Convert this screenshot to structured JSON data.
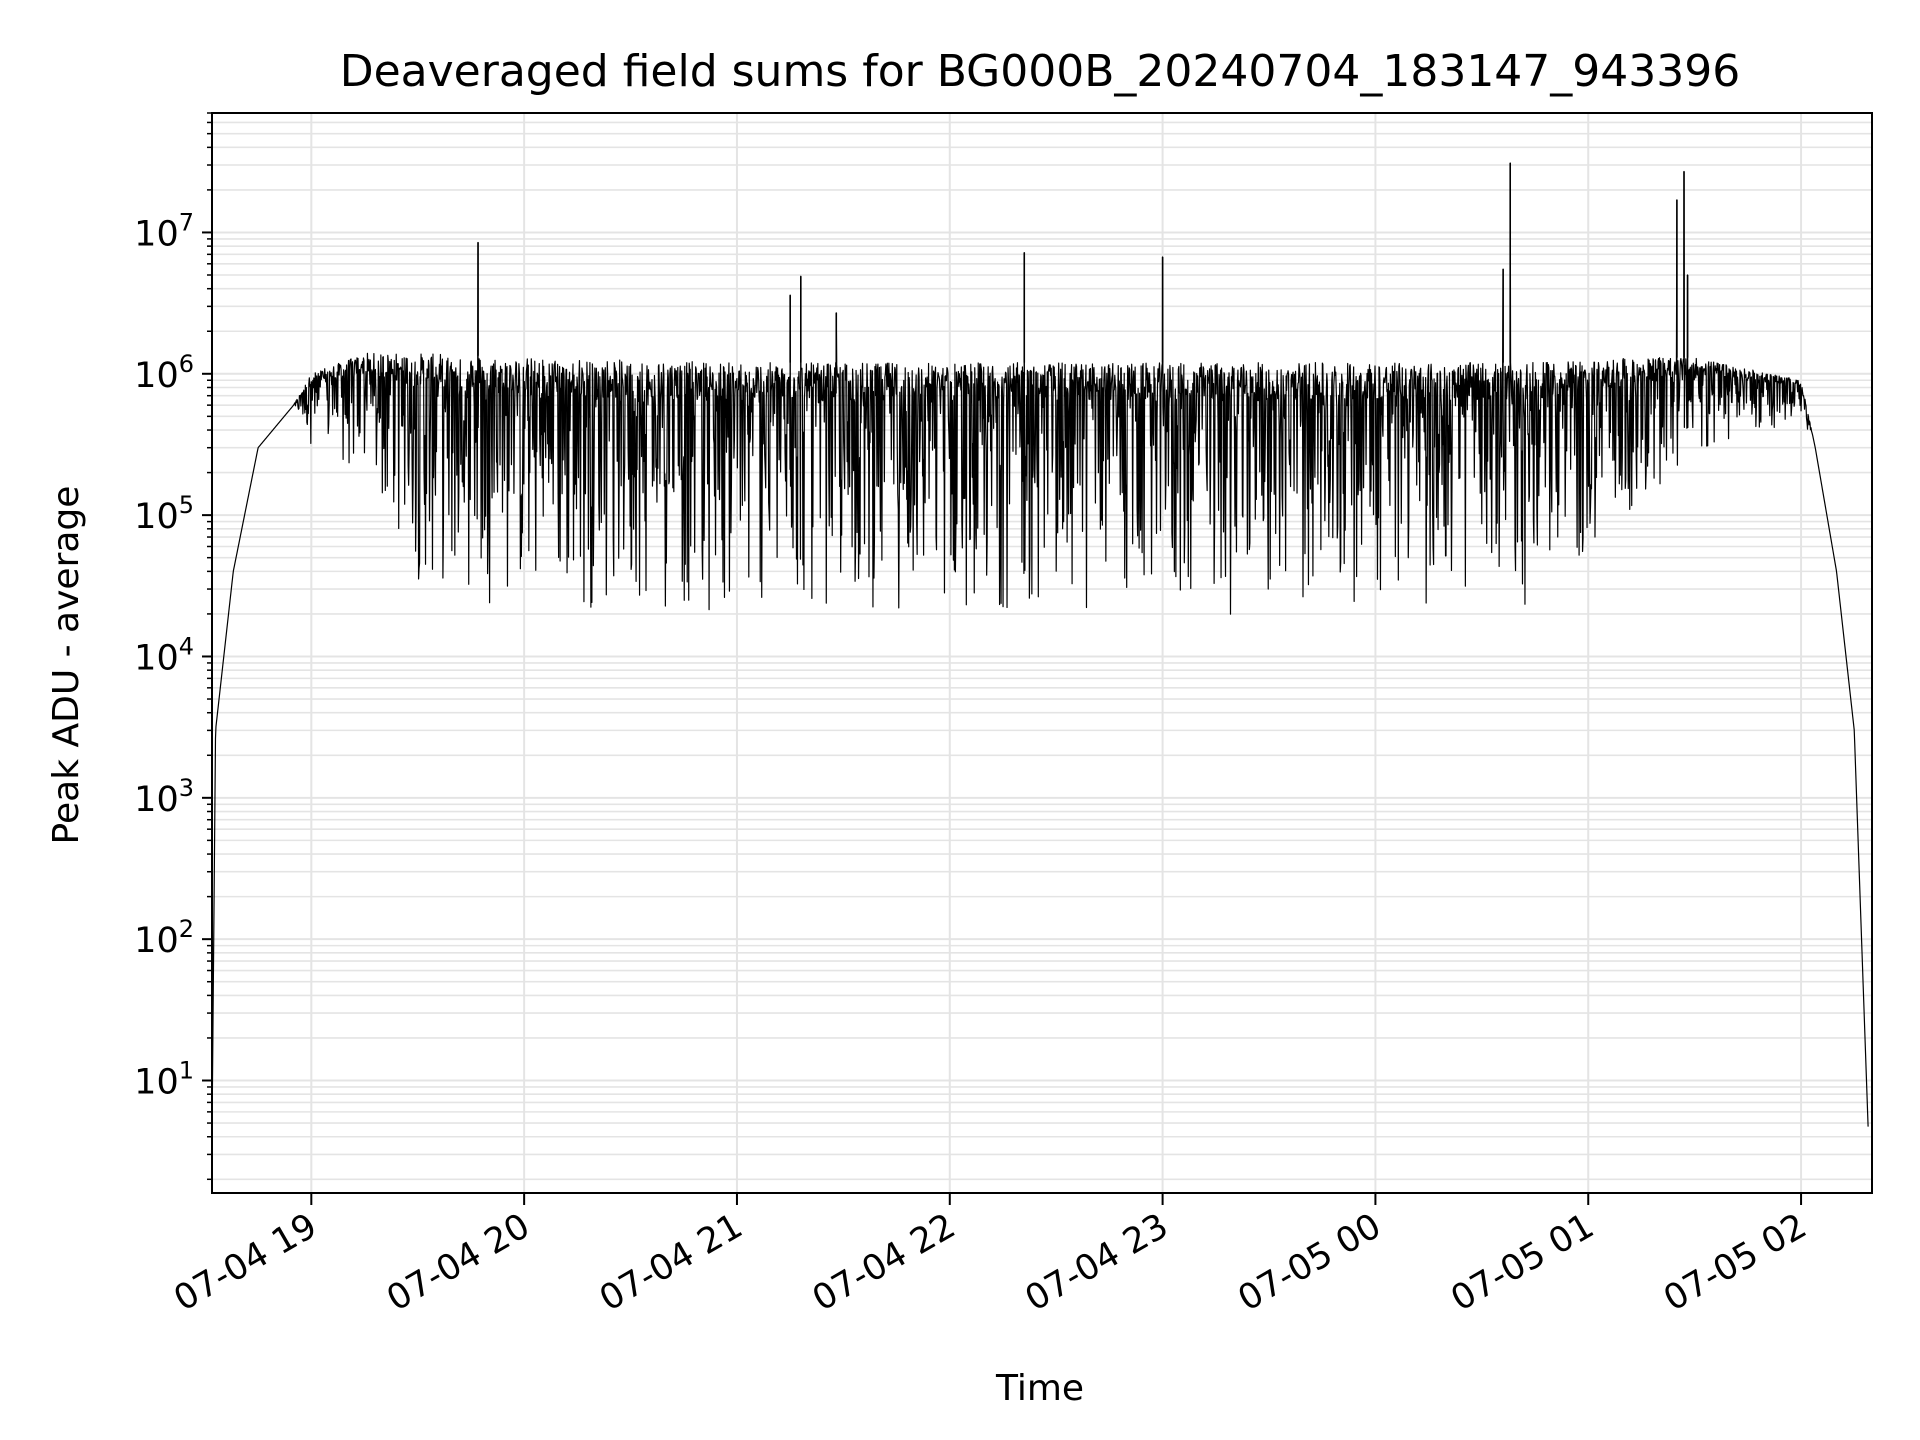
{
  "chart_data": {
    "type": "line",
    "title": "Deaveraged field sums for BG000B_20240704_183147_943396",
    "xlabel": "Time",
    "ylabel": "Peak ADU - average",
    "yscale": "log",
    "ylim": [
      1.6,
      70000000
    ],
    "xlim": [
      "07-04 18:32",
      "07-05 02:20"
    ],
    "grid": true,
    "line_color": "#000000",
    "grid_color": "#e4e4e4",
    "x_ticks": [
      "07-04 19",
      "07-04 20",
      "07-04 21",
      "07-04 22",
      "07-04 23",
      "07-05 00",
      "07-05 01",
      "07-05 02"
    ],
    "y_ticks": [
      {
        "base": "10",
        "exp": "1"
      },
      {
        "base": "10",
        "exp": "2"
      },
      {
        "base": "10",
        "exp": "3"
      },
      {
        "base": "10",
        "exp": "4"
      },
      {
        "base": "10",
        "exp": "5"
      },
      {
        "base": "10",
        "exp": "6"
      },
      {
        "base": "10",
        "exp": "7"
      }
    ],
    "series": [
      {
        "envelope": [
          {
            "t": "07-04 18:32",
            "lo": 4,
            "hi": 4
          },
          {
            "t": "07-04 18:33",
            "lo": 3000,
            "hi": 3000
          },
          {
            "t": "07-04 18:38",
            "lo": 40000,
            "hi": 40000
          },
          {
            "t": "07-04 18:45",
            "lo": 300000,
            "hi": 300000
          },
          {
            "t": "07-04 18:55",
            "lo": 600000,
            "hi": 600000
          },
          {
            "t": "07-04 19:00",
            "lo": 300000,
            "hi": 1000000
          },
          {
            "t": "07-04 19:15",
            "lo": 150000,
            "hi": 1400000
          },
          {
            "t": "07-04 19:30",
            "lo": 30000,
            "hi": 1400000
          },
          {
            "t": "07-04 20:00",
            "lo": 20000,
            "hi": 1300000
          },
          {
            "t": "07-04 21:00",
            "lo": 18000,
            "hi": 1200000
          },
          {
            "t": "07-04 22:00",
            "lo": 20000,
            "hi": 1200000
          },
          {
            "t": "07-04 23:00",
            "lo": 18000,
            "hi": 1200000
          },
          {
            "t": "07-05 00:00",
            "lo": 20000,
            "hi": 1200000
          },
          {
            "t": "07-05 00:45",
            "lo": 20000,
            "hi": 1200000
          },
          {
            "t": "07-05 01:15",
            "lo": 80000,
            "hi": 1300000
          },
          {
            "t": "07-05 01:30",
            "lo": 200000,
            "hi": 1300000
          },
          {
            "t": "07-05 02:00",
            "lo": 500000,
            "hi": 900000
          },
          {
            "t": "07-05 02:04",
            "lo": 300000,
            "hi": 300000
          },
          {
            "t": "07-05 02:10",
            "lo": 40000,
            "hi": 40000
          },
          {
            "t": "07-05 02:15",
            "lo": 3000,
            "hi": 3000
          },
          {
            "t": "07-05 02:19",
            "lo": 4,
            "hi": 4
          }
        ],
        "spikes": [
          {
            "t": "07-04 19:47",
            "y": 8500000
          },
          {
            "t": "07-04 21:15",
            "y": 3600000
          },
          {
            "t": "07-04 21:18",
            "y": 4900000
          },
          {
            "t": "07-04 21:28",
            "y": 2700000
          },
          {
            "t": "07-04 22:21",
            "y": 7200000
          },
          {
            "t": "07-04 23:00",
            "y": 6700000
          },
          {
            "t": "07-05 00:36",
            "y": 5500000
          },
          {
            "t": "07-05 00:38",
            "y": 31000000
          },
          {
            "t": "07-05 01:25",
            "y": 17000000
          },
          {
            "t": "07-05 01:27",
            "y": 27000000
          },
          {
            "t": "07-05 01:28",
            "y": 5000000
          }
        ]
      }
    ]
  }
}
